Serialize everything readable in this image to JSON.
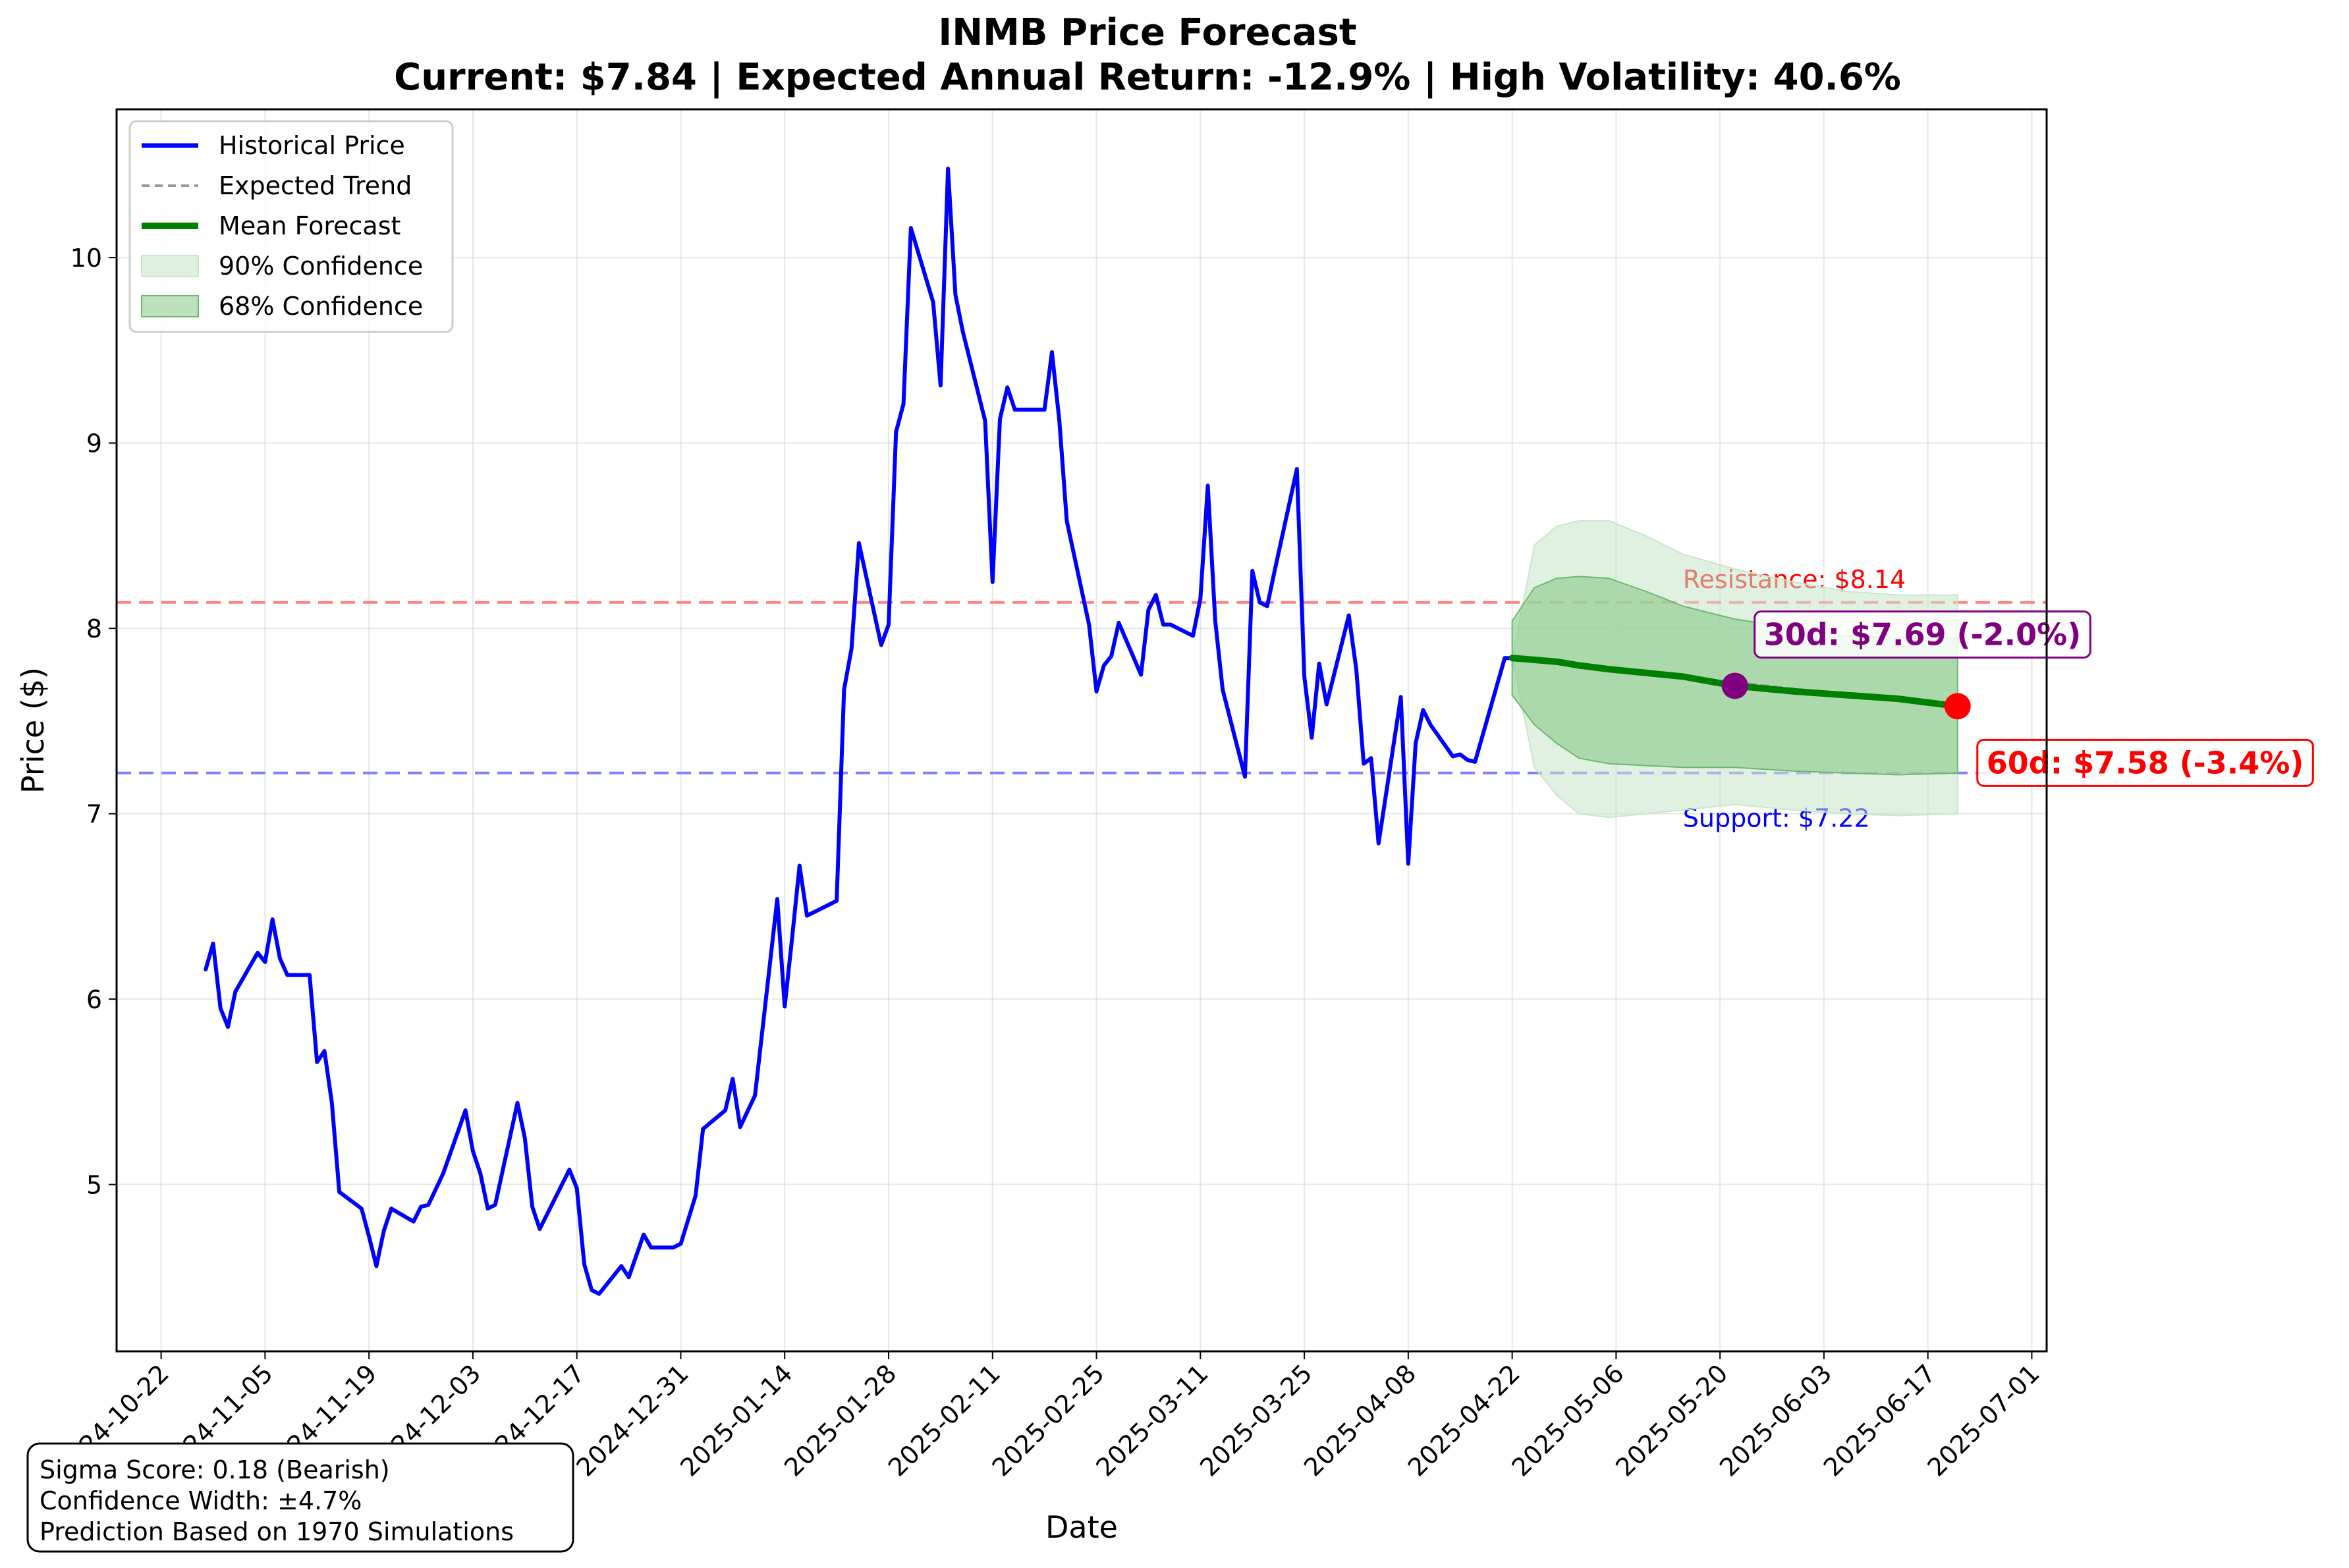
{
  "chart_data": {
    "type": "line",
    "title": "INMB Price Forecast",
    "subtitle": "Current: $7.84 | Expected Annual Return: -12.9% | High Volatility: 40.6%",
    "xlabel": "Date",
    "ylabel": "Price ($)",
    "x_range": [
      "2024-10-16",
      "2025-07-03"
    ],
    "ylim": [
      4.1,
      10.8
    ],
    "yticks": [
      5,
      6,
      7,
      8,
      9,
      10
    ],
    "xticks": [
      "2024-10-22",
      "2024-11-05",
      "2024-11-19",
      "2024-12-03",
      "2024-12-17",
      "2024-12-31",
      "2025-01-14",
      "2025-01-28",
      "2025-02-11",
      "2025-02-25",
      "2025-03-11",
      "2025-03-25",
      "2025-04-08",
      "2025-04-22",
      "2025-05-06",
      "2025-05-20",
      "2025-06-03",
      "2025-06-17",
      "2025-07-01"
    ],
    "grid": true,
    "legend_position": "upper-left",
    "legend": [
      "Historical Price",
      "Expected Trend",
      "Mean Forecast",
      "90% Confidence",
      "68% Confidence"
    ],
    "colors": {
      "historical": "#0000ff",
      "trend": "#999999",
      "forecast": "#008000",
      "ci90": "#c8e6c8",
      "ci68": "#8fcc8f",
      "resistance": "#ff8080",
      "support": "#8080ff",
      "marker30": "#800080",
      "marker60": "#ff0000"
    },
    "series": [
      {
        "name": "Historical Price",
        "x": [
          "2024-10-28",
          "2024-10-29",
          "2024-10-30",
          "2024-10-31",
          "2024-11-01",
          "2024-11-04",
          "2024-11-05",
          "2024-11-06",
          "2024-11-07",
          "2024-11-08",
          "2024-11-11",
          "2024-11-12",
          "2024-11-13",
          "2024-11-14",
          "2024-11-15",
          "2024-11-18",
          "2024-11-19",
          "2024-11-20",
          "2024-11-21",
          "2024-11-22",
          "2024-11-25",
          "2024-11-26",
          "2024-11-27",
          "2024-11-29",
          "2024-12-02",
          "2024-12-03",
          "2024-12-04",
          "2024-12-05",
          "2024-12-06",
          "2024-12-09",
          "2024-12-10",
          "2024-12-11",
          "2024-12-12",
          "2024-12-13",
          "2024-12-16",
          "2024-12-17",
          "2024-12-18",
          "2024-12-19",
          "2024-12-20",
          "2024-12-23",
          "2024-12-24",
          "2024-12-26",
          "2024-12-27",
          "2024-12-30",
          "2024-12-31",
          "2025-01-02",
          "2025-01-03",
          "2025-01-06",
          "2025-01-07",
          "2025-01-08",
          "2025-01-10",
          "2025-01-13",
          "2025-01-14",
          "2025-01-15",
          "2025-01-16",
          "2025-01-17",
          "2025-01-21",
          "2025-01-22",
          "2025-01-23",
          "2025-01-24",
          "2025-01-27",
          "2025-01-28",
          "2025-01-29",
          "2025-01-30",
          "2025-01-31",
          "2025-02-03",
          "2025-02-04",
          "2025-02-05",
          "2025-02-06",
          "2025-02-07",
          "2025-02-10",
          "2025-02-11",
          "2025-02-12",
          "2025-02-13",
          "2025-02-14",
          "2025-02-18",
          "2025-02-19",
          "2025-02-20",
          "2025-02-21",
          "2025-02-24",
          "2025-02-25",
          "2025-02-26",
          "2025-02-27",
          "2025-02-28",
          "2025-03-03",
          "2025-03-04",
          "2025-03-05",
          "2025-03-06",
          "2025-03-07",
          "2025-03-10",
          "2025-03-11",
          "2025-03-12",
          "2025-03-13",
          "2025-03-14",
          "2025-03-17",
          "2025-03-18",
          "2025-03-19",
          "2025-03-20",
          "2025-03-21",
          "2025-03-24",
          "2025-03-25",
          "2025-03-26",
          "2025-03-27",
          "2025-03-28",
          "2025-03-31",
          "2025-04-01",
          "2025-04-02",
          "2025-04-03",
          "2025-04-04",
          "2025-04-07",
          "2025-04-08",
          "2025-04-09",
          "2025-04-10",
          "2025-04-11",
          "2025-04-14",
          "2025-04-15",
          "2025-04-16",
          "2025-04-17",
          "2025-04-21",
          "2025-04-22"
        ],
        "y": [
          6.16,
          6.3,
          5.95,
          5.85,
          6.04,
          6.25,
          6.2,
          6.43,
          6.22,
          6.13,
          6.13,
          5.66,
          5.72,
          5.44,
          4.96,
          4.87,
          4.72,
          4.56,
          4.75,
          4.87,
          4.8,
          4.88,
          4.89,
          5.06,
          5.4,
          5.18,
          5.06,
          4.87,
          4.89,
          5.44,
          5.25,
          4.88,
          4.76,
          4.84,
          5.08,
          4.98,
          4.57,
          4.43,
          4.41,
          4.56,
          4.5,
          4.73,
          4.66,
          4.66,
          4.68,
          4.94,
          5.3,
          5.4,
          5.57,
          5.31,
          5.48,
          6.54,
          5.96,
          6.33,
          6.72,
          6.45,
          6.53,
          7.67,
          7.89,
          8.46,
          7.91,
          8.02,
          9.06,
          9.21,
          10.16,
          9.76,
          9.31,
          10.48,
          9.8,
          9.6,
          9.12,
          8.25,
          9.13,
          9.3,
          9.18,
          9.18,
          9.49,
          9.12,
          8.58,
          8.02,
          7.66,
          7.8,
          7.85,
          8.03,
          7.75,
          8.1,
          8.18,
          8.02,
          8.02,
          7.96,
          8.16,
          8.77,
          8.04,
          7.67,
          7.2,
          8.31,
          8.14,
          8.12,
          8.31,
          8.86,
          7.74,
          7.41,
          7.81,
          7.59,
          8.07,
          7.78,
          7.27,
          7.3,
          6.84,
          7.63,
          6.73,
          7.38,
          7.56,
          7.48,
          7.31,
          7.32,
          7.29,
          7.28,
          7.84,
          7.84
        ]
      },
      {
        "name": "Expected Trend",
        "x": [
          "2025-04-22",
          "2025-06-21"
        ],
        "y": [
          7.84,
          7.58
        ]
      },
      {
        "name": "Mean Forecast",
        "x": [
          "2025-04-22",
          "2025-04-25",
          "2025-04-28",
          "2025-05-01",
          "2025-05-05",
          "2025-05-10",
          "2025-05-15",
          "2025-05-22",
          "2025-05-30",
          "2025-06-06",
          "2025-06-13",
          "2025-06-21"
        ],
        "y": [
          7.84,
          7.83,
          7.82,
          7.8,
          7.78,
          7.76,
          7.74,
          7.69,
          7.66,
          7.64,
          7.62,
          7.58
        ]
      }
    ],
    "bands": [
      {
        "name": "90% Confidence",
        "x": [
          "2025-04-22",
          "2025-04-25",
          "2025-04-28",
          "2025-05-01",
          "2025-05-05",
          "2025-05-10",
          "2025-05-15",
          "2025-05-22",
          "2025-05-30",
          "2025-06-06",
          "2025-06-13",
          "2025-06-21"
        ],
        "lower": [
          7.84,
          7.25,
          7.1,
          7.0,
          6.98,
          7.0,
          7.02,
          7.05,
          7.02,
          7.0,
          6.99,
          7.0
        ],
        "upper": [
          7.84,
          8.45,
          8.55,
          8.58,
          8.58,
          8.5,
          8.4,
          8.32,
          8.25,
          8.2,
          8.18,
          8.18
        ]
      },
      {
        "name": "68% Confidence",
        "x": [
          "2025-04-22",
          "2025-04-25",
          "2025-04-28",
          "2025-05-01",
          "2025-05-05",
          "2025-05-10",
          "2025-05-15",
          "2025-05-22",
          "2025-05-30",
          "2025-06-06",
          "2025-06-13",
          "2025-06-21"
        ],
        "lower": [
          7.64,
          7.48,
          7.38,
          7.3,
          7.27,
          7.26,
          7.25,
          7.25,
          7.23,
          7.22,
          7.21,
          7.22
        ],
        "upper": [
          8.04,
          8.22,
          8.27,
          8.28,
          8.27,
          8.2,
          8.12,
          8.05,
          8.0,
          7.96,
          7.95,
          7.95
        ]
      }
    ],
    "reference_lines": [
      {
        "label": "Resistance: $8.14",
        "value": 8.14
      },
      {
        "label": "Support: $7.22",
        "value": 7.22
      }
    ],
    "markers": [
      {
        "label": "30d: $7.69 (-2.0%)",
        "x": "2025-05-22",
        "y": 7.69
      },
      {
        "label": "60d: $7.58 (-3.4%)",
        "x": "2025-06-21",
        "y": 7.58
      }
    ],
    "info_box": [
      "Sigma Score: 0.18 (Bearish)",
      "Confidence Width: ±4.7%",
      "Prediction Based on 1970 Simulations"
    ]
  }
}
